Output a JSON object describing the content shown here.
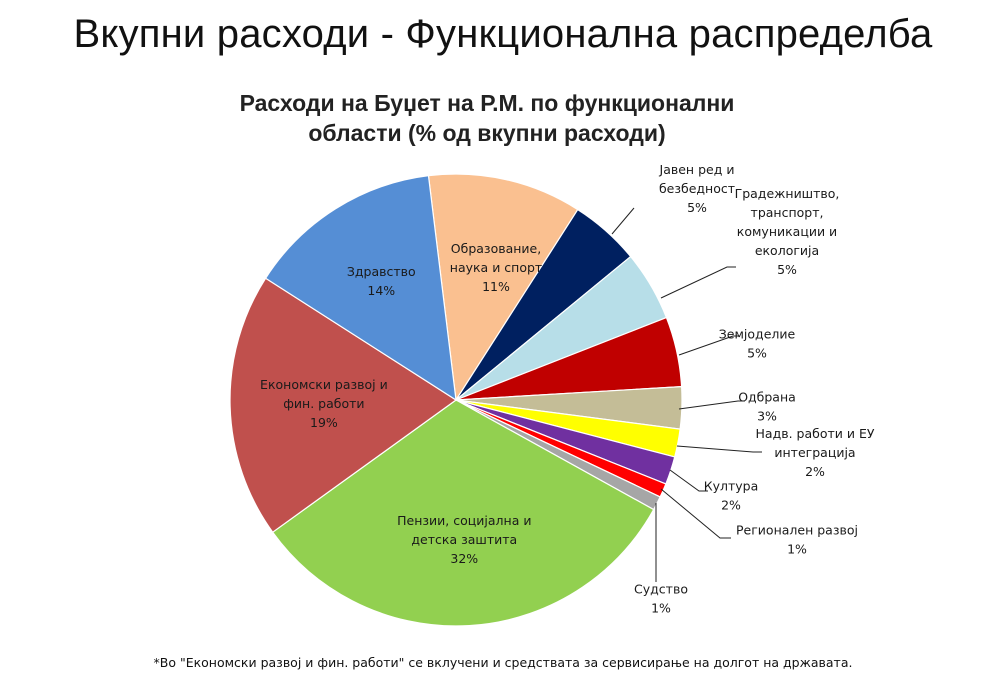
{
  "page": {
    "title": "Вкупни расходи - Функционална распределба",
    "footnote": "*Во \"Економски развој и фин. работи\" се вклучени и средствата за сервисирање на долгот на државата."
  },
  "chart_data": {
    "type": "pie",
    "title_lines": [
      "Расходи на Буџет на Р.М. по функционални",
      "области (% од вкупни расходи)"
    ],
    "unit": "%",
    "slices": [
      {
        "label": [
          "Образование,",
          "наука и спорт"
        ],
        "value": 11,
        "value_label": "11%",
        "color": "#FAC090"
      },
      {
        "label": [
          "Јавен ред и",
          "безбедност"
        ],
        "value": 5,
        "value_label": "5%",
        "color": "#002060"
      },
      {
        "label": [
          "Градежништво,",
          "транспорт,",
          "комуникации и",
          "екологија"
        ],
        "value": 5,
        "value_label": "5%",
        "color": "#B7DEE8"
      },
      {
        "label": [
          "Земјоделие"
        ],
        "value": 5,
        "value_label": "5%",
        "color": "#C00000"
      },
      {
        "label": [
          "Одбрана"
        ],
        "value": 3,
        "value_label": "3%",
        "color": "#C4BD97"
      },
      {
        "label": [
          "Надв. работи и ЕУ",
          "интеграција"
        ],
        "value": 2,
        "value_label": "2%",
        "color": "#FFFF00"
      },
      {
        "label": [
          "Култура"
        ],
        "value": 2,
        "value_label": "2%",
        "color": "#7030A0"
      },
      {
        "label": [
          "Регионален развој"
        ],
        "value": 1,
        "value_label": "1%",
        "color": "#FF0000"
      },
      {
        "label": [
          "Судство"
        ],
        "value": 1,
        "value_label": "1%",
        "color": "#A6A6A6"
      },
      {
        "label": [
          "Пензии, социјална и",
          "детска заштита"
        ],
        "value": 32,
        "value_label": "32%",
        "color": "#92D050"
      },
      {
        "label": [
          "Економски развој и",
          "фин. работи"
        ],
        "value": 19,
        "value_label": "19%",
        "color": "#C0504D"
      },
      {
        "label": [
          "Здравство"
        ],
        "value": 14,
        "value_label": "14%",
        "color": "#558ED5"
      }
    ]
  }
}
